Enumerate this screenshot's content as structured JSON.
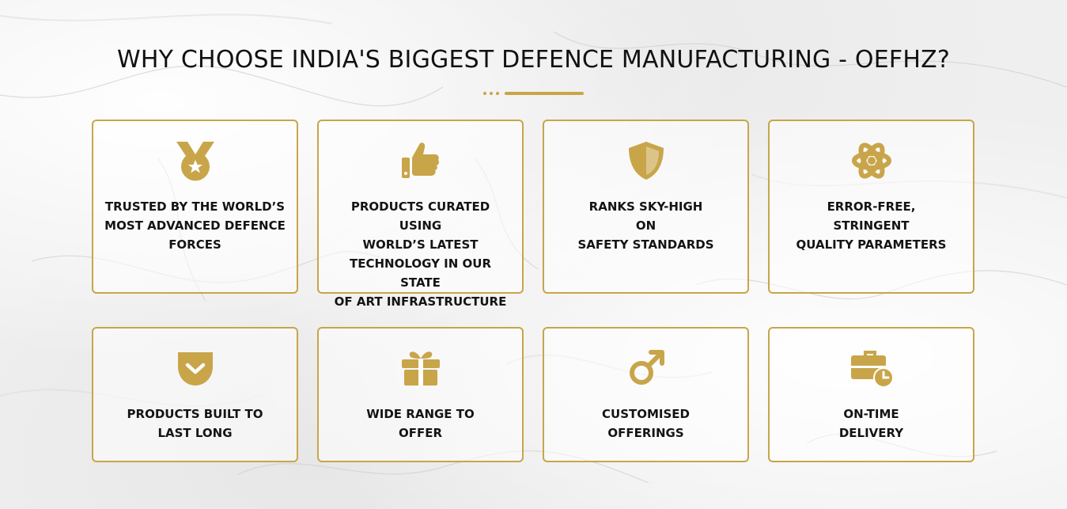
{
  "section": {
    "title": "WHY CHOOSE INDIA'S BIGGEST DEFENCE MANUFACTURING - OEFHZ?"
  },
  "colors": {
    "accent": "#c9a54a",
    "text": "#141414",
    "background": "#efefef"
  },
  "cards": [
    {
      "icon": "medal-star-icon",
      "label": "TRUSTED BY THE WORLD’S\nMOST ADVANCED DEFENCE\nFORCES"
    },
    {
      "icon": "thumbs-up-icon",
      "label": "PRODUCTS CURATED USING\nWORLD’S LATEST\nTECHNOLOGY IN OUR STATE\nOF ART INFRASTRUCTURE"
    },
    {
      "icon": "shield-icon",
      "label": "RANKS SKY-HIGH\nON\nSAFETY STANDARDS"
    },
    {
      "icon": "atom-icon",
      "label": "ERROR-FREE,\nSTRINGENT\nQUALITY PARAMETERS"
    },
    {
      "icon": "pocket-chevron-icon",
      "label": "PRODUCTS BUILT TO\nLAST LONG"
    },
    {
      "icon": "gift-icon",
      "label": "WIDE RANGE TO\nOFFER"
    },
    {
      "icon": "mars-symbol-icon",
      "label": "CUSTOMISED\nOFFERINGS"
    },
    {
      "icon": "briefcase-clock-icon",
      "label": "ON-TIME\nDELIVERY"
    }
  ]
}
